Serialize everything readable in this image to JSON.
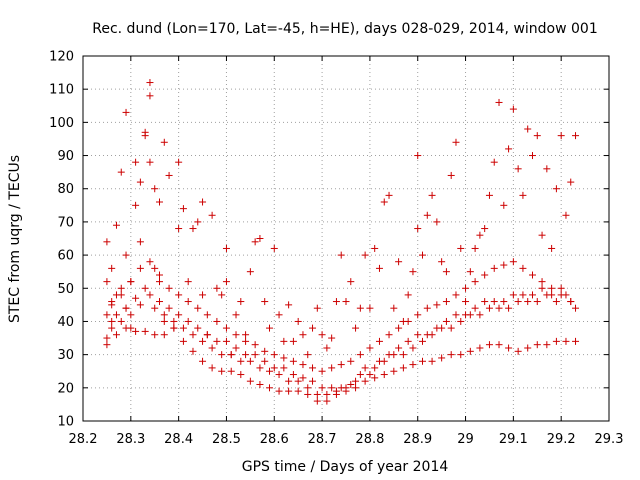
{
  "chart_data": {
    "type": "scatter",
    "title": "Rec. dund (Lon=170, Lat=-45, h=HE), days 028-029, 2014, window 001",
    "xlabel": "GPS time / Days of year 2014",
    "ylabel": "STEC from uqrg / TECUs",
    "xlim": [
      28.2,
      29.3
    ],
    "ylim": [
      10,
      120
    ],
    "x_ticks": [
      "28.2",
      "28.3",
      "28.4",
      "28.5",
      "28.6",
      "28.7",
      "28.8",
      "28.9",
      "29",
      "29.1",
      "29.2",
      "29.3"
    ],
    "y_ticks": [
      "10",
      "20",
      "30",
      "40",
      "50",
      "60",
      "70",
      "80",
      "90",
      "100",
      "110",
      "120"
    ],
    "grid": true,
    "legend": "none",
    "marker": "+",
    "point_color": "#cc0000",
    "series": [
      {
        "x": [
          28.25,
          28.25,
          28.25,
          28.26,
          28.26,
          28.26,
          28.27,
          28.27,
          28.28,
          28.28,
          28.29,
          28.29,
          28.29,
          28.3,
          28.3,
          28.31,
          28.31,
          28.32,
          28.32,
          28.33,
          28.33,
          28.34,
          28.34,
          28.34,
          28.35,
          28.35,
          28.36,
          28.36,
          28.37,
          28.37,
          28.38,
          28.39,
          28.4,
          28.4,
          28.41,
          28.42,
          28.43,
          28.44,
          28.45,
          28.45,
          28.46,
          28.47,
          28.48,
          28.49,
          28.5,
          28.5,
          28.51,
          28.52,
          28.53,
          28.54,
          28.55,
          28.56,
          28.57,
          28.58,
          28.59,
          28.6,
          28.61,
          28.62,
          28.63,
          28.64,
          28.65,
          28.66,
          28.67,
          28.68,
          28.69,
          28.7,
          28.71,
          28.72,
          28.73,
          28.74,
          28.75,
          28.76,
          28.77,
          28.78,
          28.79,
          28.8,
          28.81,
          28.82,
          28.83,
          28.84,
          28.85,
          28.86,
          28.87,
          28.88,
          28.89,
          28.9,
          28.9,
          28.91,
          28.92,
          28.93,
          28.94,
          28.95,
          28.96,
          28.97,
          28.98,
          28.99,
          29.0,
          29.01,
          29.02,
          29.03,
          29.04,
          29.05,
          29.06,
          29.07,
          29.08,
          29.09,
          29.1,
          29.11,
          29.12,
          29.13,
          29.14,
          29.15,
          29.16,
          29.17,
          29.18,
          29.19,
          29.2,
          29.21,
          29.22,
          29.23
        ],
        "y": [
          42,
          52,
          64,
          45,
          56,
          40,
          48,
          69,
          50,
          85,
          44,
          60,
          103,
          52,
          38,
          88,
          75,
          82,
          64,
          96,
          97,
          112,
          108,
          88,
          56,
          80,
          52,
          76,
          94,
          40,
          84,
          38,
          88,
          68,
          74,
          52,
          68,
          70,
          48,
          76,
          36,
          72,
          50,
          48,
          52,
          62,
          30,
          42,
          46,
          36,
          55,
          64,
          65,
          46,
          38,
          62,
          42,
          34,
          45,
          34,
          40,
          36,
          30,
          38,
          44,
          36,
          32,
          35,
          46,
          60,
          46,
          52,
          38,
          44,
          60,
          44,
          62,
          56,
          76,
          78,
          44,
          58,
          40,
          48,
          55,
          68,
          90,
          60,
          72,
          78,
          70,
          58,
          55,
          84,
          94,
          62,
          46,
          55,
          62,
          66,
          68,
          78,
          88,
          106,
          75,
          92,
          104,
          86,
          78,
          98,
          90,
          96,
          66,
          86,
          62,
          80,
          96,
          72,
          82,
          96
        ]
      },
      {
        "x": [
          28.25,
          28.26,
          28.27,
          28.28,
          28.29,
          28.3,
          28.31,
          28.32,
          28.33,
          28.34,
          28.35,
          28.36,
          28.37,
          28.38,
          28.39,
          28.4,
          28.41,
          28.42,
          28.43,
          28.44,
          28.45,
          28.46,
          28.47,
          28.48,
          28.49,
          28.5,
          28.51,
          28.52,
          28.53,
          28.54,
          28.55,
          28.56,
          28.57,
          28.58,
          28.59,
          28.6,
          28.61,
          28.62,
          28.63,
          28.64,
          28.65,
          28.66,
          28.67,
          28.68,
          28.69,
          28.7,
          28.71,
          28.72,
          28.73,
          28.74,
          28.75,
          28.76,
          28.77,
          28.78,
          28.79,
          28.8,
          28.81,
          28.82,
          28.83,
          28.84,
          28.85,
          28.86,
          28.87,
          28.88,
          28.89,
          28.9,
          28.91,
          28.92,
          28.93,
          28.94,
          28.95,
          28.96,
          28.97,
          28.98,
          28.99,
          29.0,
          29.01,
          29.02,
          29.03,
          29.04,
          29.05,
          29.06,
          29.07,
          29.08,
          29.09,
          29.1,
          29.11,
          29.12,
          29.13,
          29.14,
          29.15,
          29.16,
          29.17,
          29.18,
          29.19,
          29.2,
          29.21,
          29.22,
          29.23
        ],
        "y": [
          35,
          38,
          42,
          40,
          44,
          42,
          47,
          45,
          50,
          48,
          44,
          46,
          42,
          44,
          40,
          42,
          38,
          40,
          36,
          38,
          34,
          36,
          32,
          34,
          30,
          34,
          30,
          32,
          28,
          30,
          28,
          30,
          26,
          28,
          25,
          26,
          24,
          26,
          22,
          24,
          22,
          23,
          20,
          22,
          18,
          20,
          18,
          20,
          19,
          20,
          20,
          21,
          22,
          24,
          26,
          24,
          26,
          28,
          28,
          30,
          30,
          32,
          30,
          34,
          32,
          36,
          34,
          36,
          36,
          38,
          38,
          40,
          38,
          42,
          40,
          42,
          42,
          44,
          42,
          46,
          44,
          46,
          44,
          46,
          44,
          48,
          46,
          48,
          46,
          48,
          46,
          50,
          48,
          48,
          46,
          50,
          48,
          46,
          44
        ]
      },
      {
        "x": [
          28.25,
          28.27,
          28.29,
          28.31,
          28.33,
          28.35,
          28.37,
          28.39,
          28.41,
          28.43,
          28.45,
          28.47,
          28.49,
          28.51,
          28.53,
          28.55,
          28.57,
          28.59,
          28.61,
          28.63,
          28.65,
          28.67,
          28.69,
          28.71,
          28.73,
          28.75,
          28.77,
          28.79,
          28.81,
          28.83,
          28.85,
          28.87,
          28.89,
          28.91,
          28.93,
          28.95,
          28.97,
          28.99,
          29.01,
          29.03,
          29.05,
          29.07,
          29.09,
          29.11,
          29.13,
          29.15,
          29.17,
          29.19,
          29.21,
          29.23
        ],
        "y": [
          33,
          36,
          38,
          37,
          37,
          36,
          36,
          38,
          34,
          31,
          28,
          26,
          25,
          25,
          24,
          22,
          21,
          20,
          19,
          19,
          19,
          18,
          16,
          16,
          18,
          19,
          20,
          22,
          23,
          24,
          25,
          26,
          27,
          28,
          28,
          29,
          30,
          30,
          31,
          32,
          33,
          33,
          32,
          31,
          32,
          33,
          33,
          34,
          34,
          34
        ]
      },
      {
        "x": [
          28.26,
          28.28,
          28.3,
          28.32,
          28.34,
          28.36,
          28.38,
          28.4,
          28.42,
          28.44,
          28.46,
          28.48,
          28.5,
          28.52,
          28.54,
          28.56,
          28.58,
          28.6,
          28.62,
          28.64,
          28.66,
          28.68,
          28.7,
          28.72,
          28.74,
          28.76,
          28.78,
          28.8,
          28.82,
          28.84,
          28.86,
          28.88,
          28.9,
          28.92,
          28.94,
          28.96,
          28.98,
          29.0,
          29.02,
          29.04,
          29.06,
          29.08,
          29.1,
          29.12,
          29.14,
          29.16,
          29.18,
          29.2,
          29.22
        ],
        "y": [
          46,
          48,
          52,
          56,
          58,
          54,
          50,
          48,
          46,
          44,
          42,
          40,
          38,
          36,
          34,
          33,
          31,
          30,
          29,
          28,
          27,
          26,
          25,
          26,
          27,
          28,
          30,
          32,
          34,
          36,
          38,
          40,
          42,
          44,
          45,
          46,
          48,
          50,
          52,
          54,
          56,
          57,
          58,
          56,
          54,
          52,
          50,
          48,
          46
        ]
      }
    ]
  }
}
